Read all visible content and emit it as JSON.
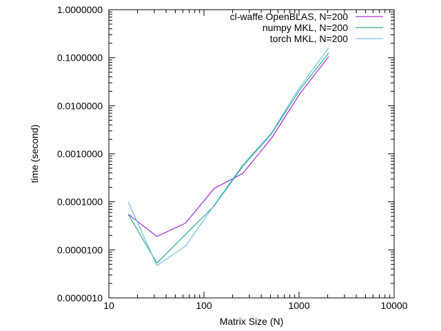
{
  "chart_data": {
    "type": "line",
    "xlabel": "Matrix Size (N)",
    "ylabel": "time (second)",
    "xscale": "log",
    "yscale": "log",
    "xlim": [
      10,
      10000
    ],
    "ylim": [
      1e-06,
      1
    ],
    "grid": false,
    "legend_position": "top-right",
    "x_ticks": [
      {
        "value": 10,
        "label": "10"
      },
      {
        "value": 100,
        "label": "100"
      },
      {
        "value": 1000,
        "label": "1000"
      },
      {
        "value": 10000,
        "label": "10000"
      }
    ],
    "y_ticks": [
      {
        "value": 1e-06,
        "label": "0.0000010"
      },
      {
        "value": 1e-05,
        "label": "0.0000100"
      },
      {
        "value": 0.0001,
        "label": "0.0001000"
      },
      {
        "value": 0.001,
        "label": "0.0010000"
      },
      {
        "value": 0.01,
        "label": "0.0100000"
      },
      {
        "value": 0.1,
        "label": "0.1000000"
      },
      {
        "value": 1,
        "label": "1.0000000"
      }
    ],
    "series": [
      {
        "name": "cl-waffe OpenBLAS, N=200",
        "color": "#9400d3",
        "x": [
          16,
          32,
          64,
          128,
          256,
          512,
          1024,
          2048
        ],
        "y": [
          5.5e-05,
          1.9e-05,
          3.6e-05,
          0.00019,
          0.00039,
          0.0021,
          0.018,
          0.105
        ]
      },
      {
        "name": "numpy MKL, N=200",
        "color": "#009e73",
        "x": [
          16,
          32,
          64,
          128,
          256,
          512,
          1024,
          2048
        ],
        "y": [
          5.5e-05,
          5.3e-06,
          2.1e-05,
          8.2e-05,
          0.00055,
          0.0026,
          0.022,
          0.125
        ]
      },
      {
        "name": "torch MKL, N=200",
        "color": "#56b4e9",
        "x": [
          16,
          32,
          64,
          128,
          256,
          512,
          1024,
          2048
        ],
        "y": [
          0.0001,
          4.7e-06,
          1.2e-05,
          8.5e-05,
          0.00059,
          0.0027,
          0.025,
          0.16
        ]
      }
    ]
  }
}
